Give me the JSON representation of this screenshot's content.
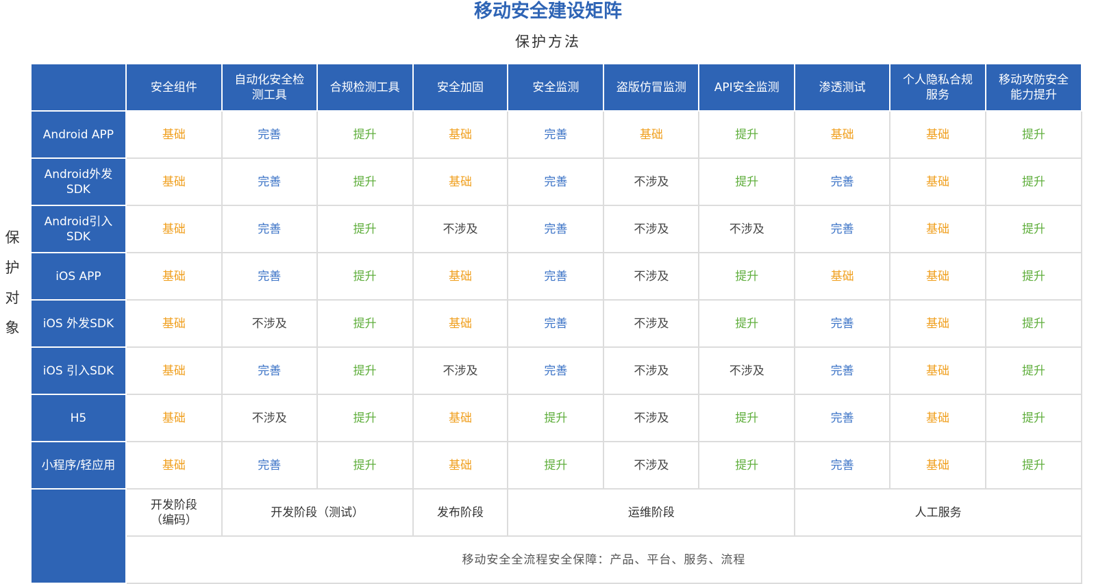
{
  "title": "移动安全建设矩阵",
  "subtitle": "保护方法",
  "side_label": [
    "保",
    "护",
    "对",
    "象"
  ],
  "columns": [
    "安全组件",
    "自动化安全检测工具",
    "合规检测工具",
    "安全加固",
    "安全监测",
    "盗版仿冒监测",
    "API安全监测",
    "渗透测试",
    "个人隐私合规服务",
    "移动攻防安全能力提升"
  ],
  "column_display": [
    [
      "安全组件"
    ],
    [
      "自动化安全检",
      "测工具"
    ],
    [
      "合规检测工具"
    ],
    [
      "安全加固"
    ],
    [
      "安全监测"
    ],
    [
      "盗版仿冒监测"
    ],
    [
      "API安全监测"
    ],
    [
      "渗透测试"
    ],
    [
      "个人隐私合规",
      "服务"
    ],
    [
      "移动攻防安全",
      "能力提升"
    ]
  ],
  "level_colors": {
    "基础": "#F0A020",
    "完善": "#3A72C6",
    "提升": "#5FAE3C",
    "不涉及": "#444444"
  },
  "header_color": "#2E64B5",
  "rows": [
    {
      "label": [
        "Android APP"
      ],
      "cells": [
        "基础",
        "完善",
        "提升",
        "基础",
        "完善",
        "基础",
        "提升",
        "基础",
        "基础",
        "提升"
      ]
    },
    {
      "label": [
        "Android外发",
        "SDK"
      ],
      "cells": [
        "基础",
        "完善",
        "提升",
        "基础",
        "完善",
        "不涉及",
        "提升",
        "完善",
        "基础",
        "提升"
      ]
    },
    {
      "label": [
        "Android引入",
        "SDK"
      ],
      "cells": [
        "基础",
        "完善",
        "提升",
        "不涉及",
        "完善",
        "不涉及",
        "不涉及",
        "完善",
        "基础",
        "提升"
      ]
    },
    {
      "label": [
        "iOS APP"
      ],
      "cells": [
        "基础",
        "完善",
        "提升",
        "基础",
        "完善",
        "不涉及",
        "提升",
        "基础",
        "基础",
        "提升"
      ]
    },
    {
      "label": [
        "iOS 外发SDK"
      ],
      "cells": [
        "基础",
        "不涉及",
        "提升",
        "基础",
        "完善",
        "不涉及",
        "提升",
        "完善",
        "基础",
        "提升"
      ]
    },
    {
      "label": [
        "iOS 引入SDK"
      ],
      "cells": [
        "基础",
        "完善",
        "提升",
        "不涉及",
        "完善",
        "不涉及",
        "不涉及",
        "完善",
        "基础",
        "提升"
      ]
    },
    {
      "label": [
        "H5"
      ],
      "cells": [
        "基础",
        "不涉及",
        "提升",
        "基础",
        "提升",
        "不涉及",
        "提升",
        "完善",
        "基础",
        "提升"
      ]
    },
    {
      "label": [
        "小程序/轻应用"
      ],
      "cells": [
        "基础",
        "完善",
        "提升",
        "基础",
        "提升",
        "不涉及",
        "提升",
        "完善",
        "基础",
        "提升"
      ]
    }
  ],
  "stages": [
    {
      "label": [
        "开发阶段",
        "（编码）"
      ],
      "span": 1
    },
    {
      "label": [
        "开发阶段（测试）"
      ],
      "span": 2
    },
    {
      "label": [
        "发布阶段"
      ],
      "span": 1
    },
    {
      "label": [
        "运维阶段"
      ],
      "span": 3
    },
    {
      "label": [
        "人工服务"
      ],
      "span": 3
    }
  ],
  "footer": "移动安全全流程安全保障：产品、平台、服务、流程"
}
